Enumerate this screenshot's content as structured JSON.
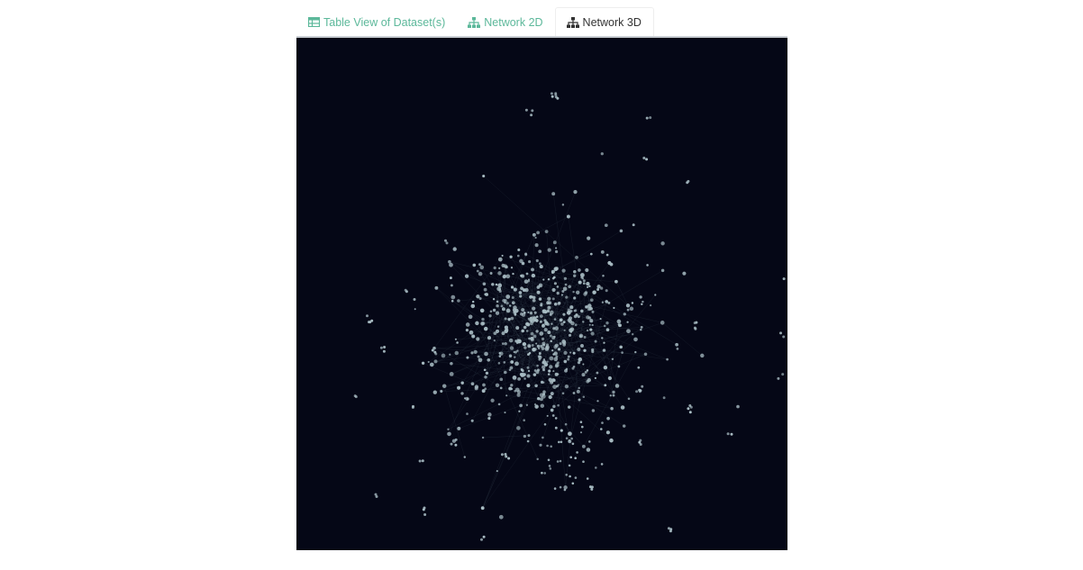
{
  "colors": {
    "accent": "#5cb89a",
    "active_text": "#333333",
    "canvas_bg": "#050716",
    "node": "#a9bdc4",
    "edge": "#5a6f7a"
  },
  "tabs": [
    {
      "label": "Table View of Dataset(s)",
      "icon": "table-icon",
      "active": false
    },
    {
      "label": "Network 2D",
      "icon": "sitemap-icon",
      "active": false
    },
    {
      "label": "Network 3D",
      "icon": "sitemap-icon",
      "active": true
    }
  ]
}
